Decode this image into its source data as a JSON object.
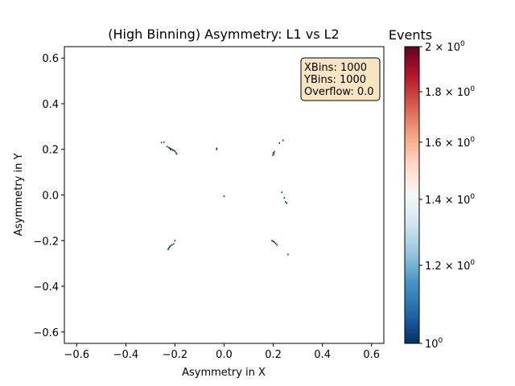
{
  "chart_data": {
    "type": "heatmap",
    "title": "(High Binning) Asymmetry: L1 vs L2",
    "xlabel": "Asymmetry in X",
    "ylabel": "Asymmetry in Y",
    "xlim": [
      -0.65,
      0.65
    ],
    "ylim": [
      -0.65,
      0.65
    ],
    "xticks": [
      "−0.6",
      "−0.4",
      "−0.2",
      "0.0",
      "0.2",
      "0.4",
      "0.6"
    ],
    "xtick_values": [
      -0.6,
      -0.4,
      -0.2,
      0.0,
      0.2,
      0.4,
      0.6
    ],
    "yticks": [
      "−0.6",
      "−0.4",
      "−0.2",
      "0.0",
      "0.2",
      "0.4",
      "0.6"
    ],
    "ytick_values": [
      -0.6,
      -0.4,
      -0.2,
      0.0,
      0.2,
      0.4,
      0.6
    ],
    "grid": false,
    "colormap": "RdBu_r",
    "colorbar": {
      "label": "Events",
      "scale": "log",
      "range": [
        1,
        2
      ],
      "ticks": [
        {
          "value": 1.0,
          "base": "10",
          "exp": "0",
          "prefix": ""
        },
        {
          "value": 1.2,
          "base": "10",
          "exp": "0",
          "prefix": "1.2 × "
        },
        {
          "value": 1.4,
          "base": "10",
          "exp": "0",
          "prefix": "1.4 × "
        },
        {
          "value": 1.6,
          "base": "10",
          "exp": "0",
          "prefix": "1.6 × "
        },
        {
          "value": 1.8,
          "base": "10",
          "exp": "0",
          "prefix": "1.8 × "
        },
        {
          "value": 2.0,
          "base": "10",
          "exp": "0",
          "prefix": "2 × "
        }
      ],
      "colors": [
        "#053061",
        "#2166ac",
        "#4393c3",
        "#92c5de",
        "#d1e5f0",
        "#f7f7f7",
        "#fddbc7",
        "#f4a582",
        "#d6604d",
        "#b2182b",
        "#67001f"
      ]
    },
    "infobox": {
      "lines": [
        "XBins: 1000",
        "YBins: 1000",
        "Overflow: 0.0"
      ],
      "facecolor": "#f5deb3"
    },
    "points": [
      {
        "x": -0.255,
        "y": 0.23,
        "v": 1
      },
      {
        "x": -0.245,
        "y": 0.232,
        "v": 1
      },
      {
        "x": -0.232,
        "y": 0.212,
        "v": 1
      },
      {
        "x": -0.225,
        "y": 0.208,
        "v": 1
      },
      {
        "x": -0.22,
        "y": 0.205,
        "v": 1
      },
      {
        "x": -0.215,
        "y": 0.202,
        "v": 1
      },
      {
        "x": -0.21,
        "y": 0.198,
        "v": 1
      },
      {
        "x": -0.205,
        "y": 0.196,
        "v": 1
      },
      {
        "x": -0.2,
        "y": 0.192,
        "v": 1
      },
      {
        "x": -0.196,
        "y": 0.186,
        "v": 1
      },
      {
        "x": -0.193,
        "y": 0.18,
        "v": 1
      },
      {
        "x": -0.218,
        "y": 0.2,
        "v": 2
      },
      {
        "x": -0.03,
        "y": 0.205,
        "v": 1
      },
      {
        "x": -0.03,
        "y": 0.2,
        "v": 1
      },
      {
        "x": 0.2,
        "y": 0.185,
        "v": 1
      },
      {
        "x": 0.203,
        "y": 0.18,
        "v": 1
      },
      {
        "x": 0.198,
        "y": 0.175,
        "v": 1
      },
      {
        "x": 0.205,
        "y": 0.19,
        "v": 1
      },
      {
        "x": 0.225,
        "y": 0.228,
        "v": 1
      },
      {
        "x": 0.24,
        "y": 0.24,
        "v": 1
      },
      {
        "x": 0.0,
        "y": -0.005,
        "v": 1
      },
      {
        "x": 0.235,
        "y": 0.012,
        "v": 1
      },
      {
        "x": 0.245,
        "y": -0.012,
        "v": 1
      },
      {
        "x": 0.25,
        "y": -0.03,
        "v": 1
      },
      {
        "x": 0.255,
        "y": -0.035,
        "v": 1
      },
      {
        "x": -0.225,
        "y": -0.232,
        "v": 1
      },
      {
        "x": -0.222,
        "y": -0.228,
        "v": 1
      },
      {
        "x": -0.218,
        "y": -0.222,
        "v": 1
      },
      {
        "x": -0.212,
        "y": -0.218,
        "v": 1
      },
      {
        "x": -0.205,
        "y": -0.214,
        "v": 1
      },
      {
        "x": -0.2,
        "y": -0.2,
        "v": 1
      },
      {
        "x": -0.228,
        "y": -0.238,
        "v": 1
      },
      {
        "x": 0.195,
        "y": -0.2,
        "v": 1
      },
      {
        "x": 0.2,
        "y": -0.203,
        "v": 1
      },
      {
        "x": 0.205,
        "y": -0.207,
        "v": 1
      },
      {
        "x": 0.21,
        "y": -0.212,
        "v": 1
      },
      {
        "x": 0.215,
        "y": -0.218,
        "v": 1
      },
      {
        "x": 0.26,
        "y": -0.26,
        "v": 1
      }
    ]
  }
}
